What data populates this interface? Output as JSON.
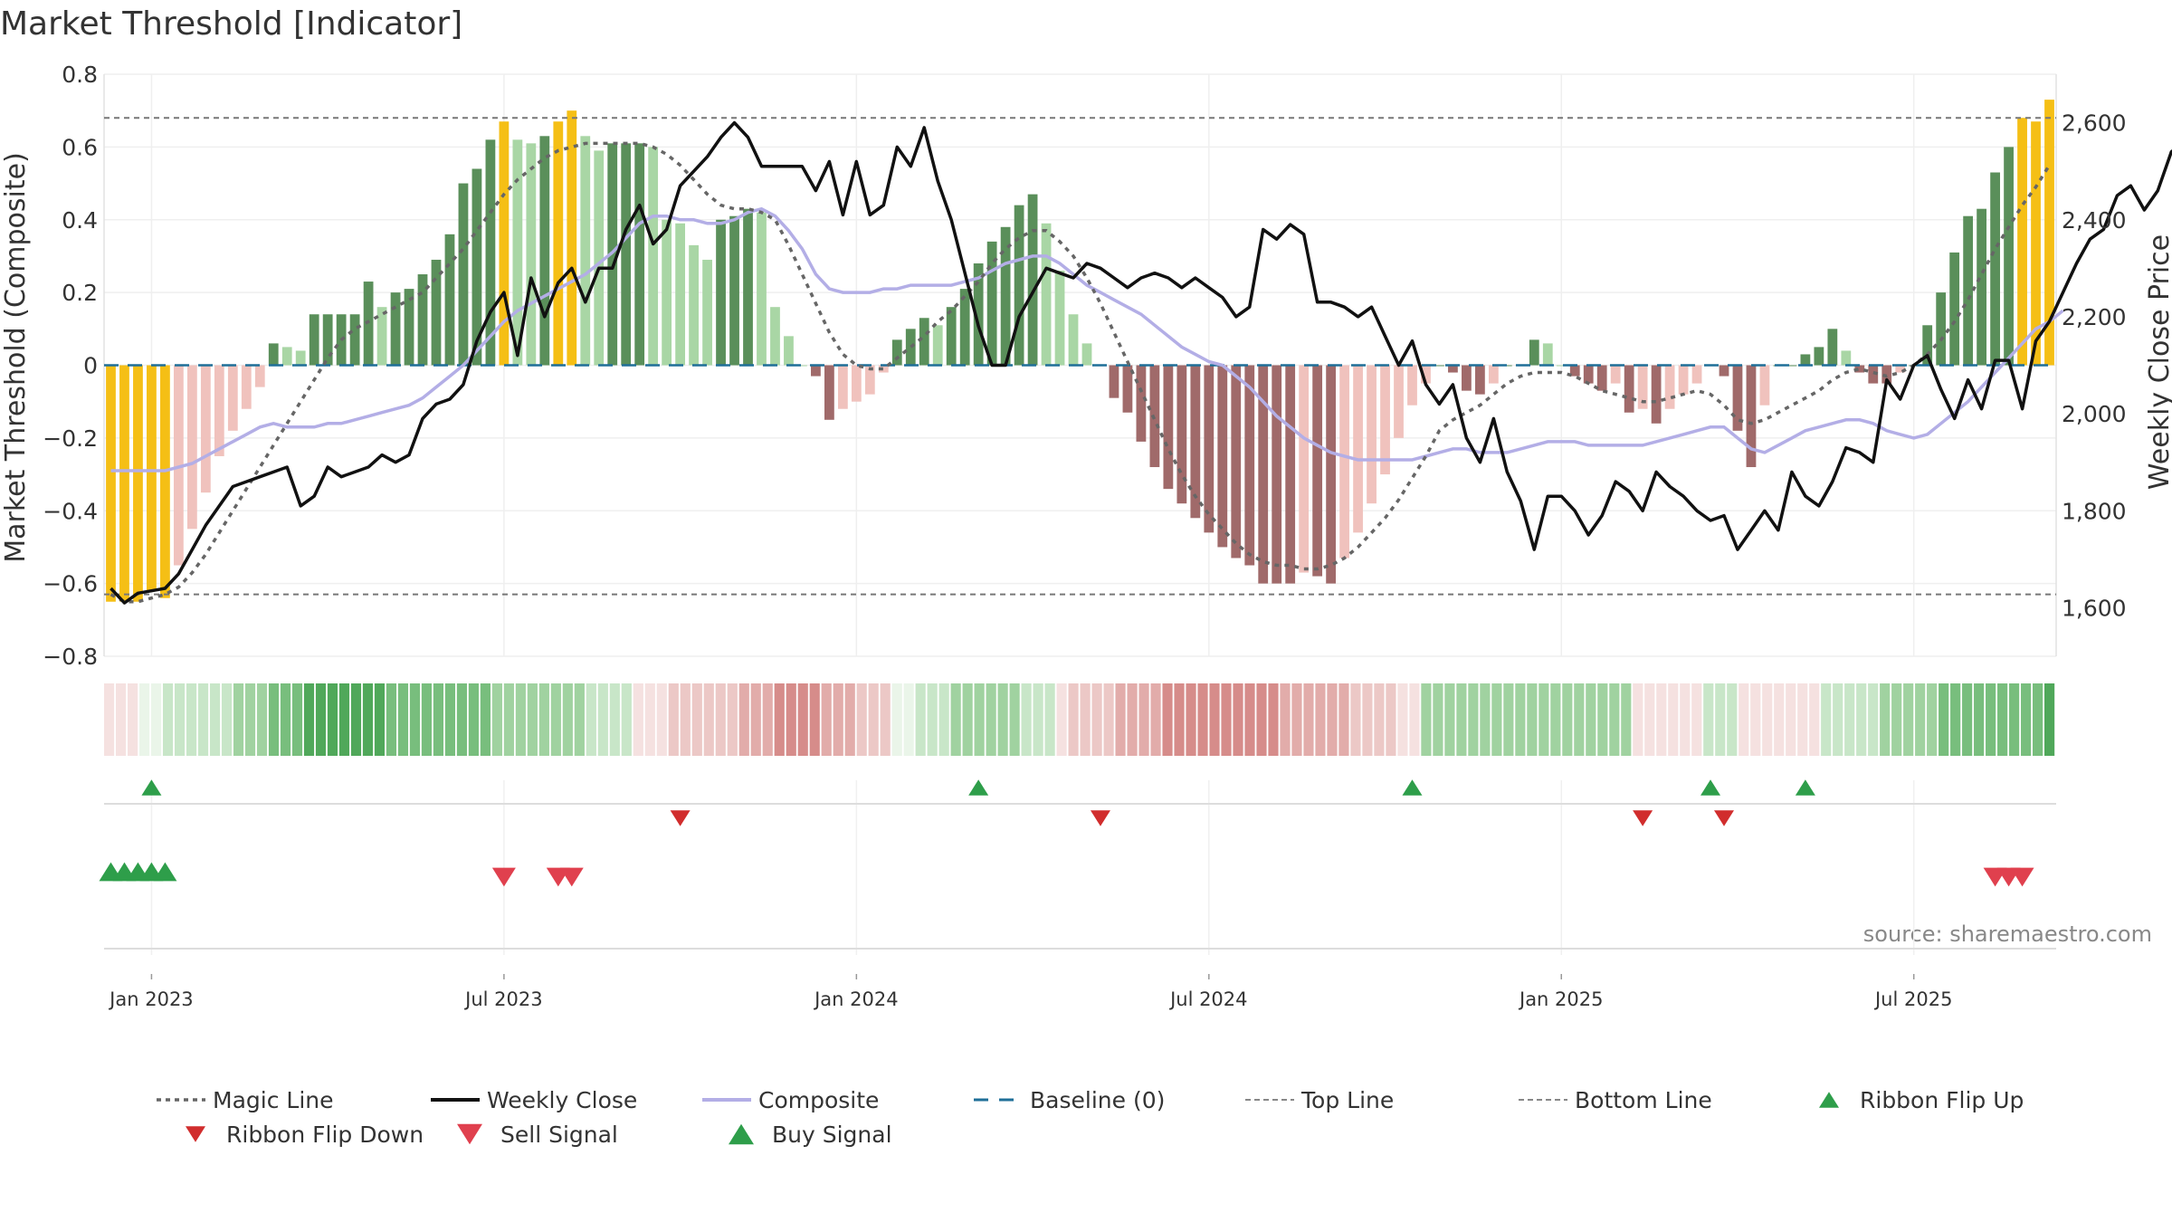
{
  "chart_data": {
    "type": "bar",
    "title": "Market Threshold [Indicator]",
    "ylabel": "Market Threshold (Composite)",
    "y2label": "Weekly Close Price",
    "source": "source: sharemaestro.com",
    "ylim": [
      -0.8,
      0.8
    ],
    "y2lim": [
      1500,
      2700
    ],
    "yticks": [
      {
        "value": 0.8,
        "label": "0.8"
      },
      {
        "value": 0.6,
        "label": "0.6"
      },
      {
        "value": 0.4,
        "label": "0.4"
      },
      {
        "value": 0.2,
        "label": "0.2"
      },
      {
        "value": 0,
        "label": "0"
      },
      {
        "value": -0.2,
        "label": "−0.2"
      },
      {
        "value": -0.4,
        "label": "−0.4"
      },
      {
        "value": -0.6,
        "label": "−0.6"
      },
      {
        "value": -0.8,
        "label": "−0.8"
      }
    ],
    "y2ticks": [
      {
        "value": 2600,
        "label": "2,600"
      },
      {
        "value": 2400,
        "label": "2,400"
      },
      {
        "value": 2200,
        "label": "2,200"
      },
      {
        "value": 2000,
        "label": "2,000"
      },
      {
        "value": 1800,
        "label": "1,800"
      },
      {
        "value": 1600,
        "label": "1,600"
      }
    ],
    "x_date_ticks": [
      {
        "week": 3,
        "label": "Jan 2023"
      },
      {
        "week": 29,
        "label": "Jul 2023"
      },
      {
        "week": 55,
        "label": "Jan 2024"
      },
      {
        "week": 81,
        "label": "Jul 2024"
      },
      {
        "week": 107,
        "label": "Jan 2025"
      },
      {
        "week": 133,
        "label": "Jul 2025"
      }
    ],
    "top_line": 0.68,
    "bottom_line": -0.63,
    "bar_colors": {
      "strong_pos": "#5a8f5a",
      "weak_pos": "#a9d6a5",
      "strong_neg": "#a06a6a",
      "weak_neg": "#f0c2bd",
      "extreme": "#f5bf15"
    },
    "line_colors": {
      "magic": "#666666",
      "weekly_close": "#111111",
      "composite": "#b3aee6",
      "baseline": "#1f6f98",
      "threshold": "#777777"
    },
    "ribbon_colors": {
      "green": [
        [
          234,
          245,
          233
        ],
        [
          200,
          230,
          200
        ],
        [
          160,
          210,
          160
        ],
        [
          120,
          190,
          125
        ],
        [
          80,
          168,
          90
        ]
      ],
      "red": [
        [
          245,
          225,
          224
        ],
        [
          236,
          200,
          198
        ],
        [
          226,
          172,
          170
        ],
        [
          214,
          140,
          138
        ],
        [
          200,
          112,
          110
        ]
      ]
    },
    "composite_bars": [
      -0.65,
      -0.65,
      -0.65,
      -0.62,
      -0.64,
      -0.55,
      -0.45,
      -0.35,
      -0.25,
      -0.18,
      -0.12,
      -0.06,
      0.06,
      0.05,
      0.04,
      0.14,
      0.14,
      0.14,
      0.14,
      0.23,
      0.16,
      0.2,
      0.21,
      0.25,
      0.29,
      0.36,
      0.5,
      0.54,
      0.62,
      0.67,
      0.62,
      0.61,
      0.63,
      0.67,
      0.7,
      0.63,
      0.59,
      0.61,
      0.61,
      0.61,
      0.6,
      0.4,
      0.39,
      0.33,
      0.29,
      0.4,
      0.41,
      0.43,
      0.42,
      0.16,
      0.08,
      0.0,
      -0.03,
      -0.15,
      -0.12,
      -0.1,
      -0.08,
      -0.02,
      0.07,
      0.1,
      0.13,
      0.11,
      0.16,
      0.21,
      0.28,
      0.34,
      0.38,
      0.44,
      0.47,
      0.39,
      0.26,
      0.14,
      0.06,
      0.0,
      -0.09,
      -0.13,
      -0.21,
      -0.28,
      -0.34,
      -0.38,
      -0.42,
      -0.46,
      -0.5,
      -0.53,
      -0.55,
      -0.6,
      -0.6,
      -0.6,
      -0.57,
      -0.58,
      -0.6,
      -0.53,
      -0.46,
      -0.38,
      -0.3,
      -0.2,
      -0.11,
      -0.05,
      0.0,
      -0.02,
      -0.07,
      -0.08,
      -0.05,
      0.0,
      0.0,
      0.07,
      0.06,
      0.0,
      -0.03,
      -0.05,
      -0.07,
      -0.05,
      -0.13,
      -0.12,
      -0.16,
      -0.12,
      -0.08,
      -0.05,
      0.0,
      -0.03,
      -0.18,
      -0.28,
      -0.11,
      0.0,
      0.0,
      0.03,
      0.05,
      0.1,
      0.04,
      -0.02,
      -0.05,
      -0.05,
      -0.02,
      0.0,
      0.11,
      0.2,
      0.31,
      0.41,
      0.43,
      0.53,
      0.6,
      0.68,
      0.67,
      0.73
    ],
    "weekly_close": [
      1640,
      1610,
      1630,
      1635,
      1640,
      1670,
      1720,
      1770,
      1810,
      1850,
      1860,
      1870,
      1880,
      1890,
      1810,
      1830,
      1890,
      1870,
      1880,
      1890,
      1915,
      1900,
      1915,
      1990,
      2020,
      2030,
      2060,
      2150,
      2210,
      2250,
      2120,
      2280,
      2200,
      2270,
      2300,
      2230,
      2300,
      2300,
      2380,
      2430,
      2350,
      2380,
      2470,
      2500,
      2530,
      2570,
      2600,
      2570,
      2510,
      2510,
      2510,
      2510,
      2460,
      2520,
      2410,
      2520,
      2410,
      2430,
      2550,
      2510,
      2590,
      2480,
      2400,
      2290,
      2180,
      2100,
      2100,
      2200,
      2250,
      2300,
      2290,
      2280,
      2310,
      2300,
      2280,
      2260,
      2280,
      2290,
      2280,
      2260,
      2280,
      2260,
      2240,
      2200,
      2220,
      2380,
      2360,
      2390,
      2370,
      2230,
      2230,
      2220,
      2200,
      2220,
      2160,
      2100,
      2150,
      2060,
      2020,
      2060,
      1950,
      1900,
      1990,
      1880,
      1820,
      1720,
      1830,
      1830,
      1800,
      1750,
      1790,
      1860,
      1840,
      1800,
      1880,
      1850,
      1830,
      1800,
      1780,
      1790,
      1720,
      1760,
      1800,
      1760,
      1880,
      1830,
      1810,
      1860,
      1930,
      1920,
      1900,
      2070,
      2030,
      2100,
      2120,
      2050,
      1990,
      2070,
      2010,
      2110,
      2110,
      2010,
      2150,
      2190,
      2250,
      2310,
      2360,
      2380,
      2450,
      2470,
      2420,
      2460,
      2540,
      2560
    ],
    "composite_line": [
      -0.29,
      -0.29,
      -0.29,
      -0.29,
      -0.29,
      -0.28,
      -0.27,
      -0.25,
      -0.23,
      -0.21,
      -0.19,
      -0.17,
      -0.16,
      -0.17,
      -0.17,
      -0.17,
      -0.16,
      -0.16,
      -0.15,
      -0.14,
      -0.13,
      -0.12,
      -0.11,
      -0.09,
      -0.06,
      -0.03,
      0.0,
      0.04,
      0.08,
      0.12,
      0.15,
      0.17,
      0.19,
      0.21,
      0.23,
      0.25,
      0.28,
      0.31,
      0.35,
      0.39,
      0.41,
      0.41,
      0.4,
      0.4,
      0.39,
      0.39,
      0.4,
      0.42,
      0.43,
      0.41,
      0.37,
      0.32,
      0.25,
      0.21,
      0.2,
      0.2,
      0.2,
      0.21,
      0.21,
      0.22,
      0.22,
      0.22,
      0.22,
      0.23,
      0.24,
      0.26,
      0.28,
      0.29,
      0.3,
      0.3,
      0.28,
      0.25,
      0.22,
      0.2,
      0.18,
      0.16,
      0.14,
      0.11,
      0.08,
      0.05,
      0.03,
      0.01,
      0.0,
      -0.03,
      -0.06,
      -0.1,
      -0.14,
      -0.17,
      -0.2,
      -0.22,
      -0.24,
      -0.25,
      -0.26,
      -0.26,
      -0.26,
      -0.26,
      -0.26,
      -0.25,
      -0.24,
      -0.23,
      -0.23,
      -0.24,
      -0.24,
      -0.24,
      -0.23,
      -0.22,
      -0.21,
      -0.21,
      -0.21,
      -0.22,
      -0.22,
      -0.22,
      -0.22,
      -0.22,
      -0.21,
      -0.2,
      -0.19,
      -0.18,
      -0.17,
      -0.17,
      -0.2,
      -0.23,
      -0.24,
      -0.22,
      -0.2,
      -0.18,
      -0.17,
      -0.16,
      -0.15,
      -0.15,
      -0.16,
      -0.18,
      -0.19,
      -0.2,
      -0.19,
      -0.16,
      -0.13,
      -0.1,
      -0.06,
      -0.02,
      0.02,
      0.06,
      0.1,
      0.12,
      0.15
    ],
    "magic_line": [
      -0.63,
      -0.65,
      -0.65,
      -0.64,
      -0.63,
      -0.61,
      -0.57,
      -0.52,
      -0.46,
      -0.4,
      -0.34,
      -0.28,
      -0.22,
      -0.16,
      -0.1,
      -0.04,
      0.02,
      0.07,
      0.1,
      0.12,
      0.14,
      0.16,
      0.18,
      0.2,
      0.24,
      0.28,
      0.32,
      0.37,
      0.42,
      0.47,
      0.51,
      0.54,
      0.57,
      0.59,
      0.6,
      0.61,
      0.61,
      0.61,
      0.61,
      0.61,
      0.6,
      0.58,
      0.55,
      0.51,
      0.47,
      0.44,
      0.43,
      0.43,
      0.42,
      0.4,
      0.33,
      0.25,
      0.17,
      0.09,
      0.03,
      0.0,
      -0.01,
      -0.01,
      0.02,
      0.05,
      0.08,
      0.12,
      0.15,
      0.19,
      0.23,
      0.28,
      0.32,
      0.35,
      0.37,
      0.37,
      0.34,
      0.3,
      0.24,
      0.17,
      0.09,
      0.01,
      -0.07,
      -0.15,
      -0.23,
      -0.3,
      -0.36,
      -0.41,
      -0.45,
      -0.49,
      -0.52,
      -0.54,
      -0.55,
      -0.55,
      -0.56,
      -0.56,
      -0.55,
      -0.53,
      -0.5,
      -0.46,
      -0.42,
      -0.37,
      -0.31,
      -0.25,
      -0.18,
      -0.15,
      -0.13,
      -0.11,
      -0.08,
      -0.05,
      -0.03,
      -0.02,
      -0.02,
      -0.02,
      -0.03,
      -0.05,
      -0.07,
      -0.08,
      -0.09,
      -0.1,
      -0.1,
      -0.09,
      -0.08,
      -0.07,
      -0.08,
      -0.11,
      -0.15,
      -0.16,
      -0.15,
      -0.13,
      -0.11,
      -0.09,
      -0.07,
      -0.04,
      -0.02,
      -0.01,
      -0.02,
      -0.03,
      -0.02,
      0.0,
      0.03,
      0.07,
      0.12,
      0.18,
      0.25,
      0.32,
      0.38,
      0.44,
      0.49,
      0.55
    ],
    "ribbon_levels": [
      -1,
      -1,
      -1,
      1,
      1,
      2,
      2,
      2,
      2,
      2,
      2,
      3,
      3,
      3,
      4,
      4,
      4,
      5,
      5,
      5,
      5,
      5,
      5,
      5,
      4,
      4,
      4,
      4,
      4,
      4,
      4,
      4,
      4,
      3,
      3,
      3,
      3,
      3,
      3,
      3,
      3,
      2,
      2,
      2,
      2,
      -1,
      -1,
      -1,
      -2,
      -2,
      -2,
      -2,
      -2,
      -2,
      -3,
      -3,
      -3,
      -4,
      -4,
      -4,
      -4,
      -3,
      -3,
      -3,
      -2,
      -2,
      -2,
      1,
      1,
      2,
      2,
      2,
      3,
      3,
      3,
      3,
      3,
      3,
      2,
      2,
      2,
      -1,
      -2,
      -2,
      -2,
      -2,
      -3,
      -3,
      -3,
      -3,
      -4,
      -4,
      -4,
      -4,
      -4,
      -4,
      -4,
      -4,
      -4,
      -4,
      -3,
      -3,
      -3,
      -3,
      -3,
      -3,
      -2,
      -2,
      -2,
      -2,
      -1,
      -1,
      3,
      3,
      3,
      3,
      3,
      3,
      3,
      3,
      3,
      3,
      3,
      3,
      3,
      3,
      3,
      3,
      3,
      3,
      -1,
      -1,
      -1,
      -1,
      -1,
      -1,
      2,
      2,
      2,
      -1,
      -1,
      -1,
      -1,
      -1,
      -1,
      -1,
      2,
      2,
      2,
      2,
      2,
      3,
      3,
      3,
      3,
      3,
      4,
      4,
      4,
      4,
      4,
      4,
      4,
      4,
      4,
      5
    ],
    "ribbon_flip_up_weeks": [
      3,
      64,
      96,
      118,
      125
    ],
    "ribbon_flip_down_weeks": [
      42,
      73,
      113,
      119
    ],
    "buy_signal_weeks": [
      0,
      1,
      2,
      3,
      4
    ],
    "sell_signal_weeks": [
      29,
      33,
      34,
      139,
      140,
      141
    ],
    "legend": [
      {
        "label": "Magic Line",
        "kind": "dotted",
        "color": "#666666"
      },
      {
        "label": "Weekly Close",
        "kind": "solid",
        "color": "#111111"
      },
      {
        "label": "Composite",
        "kind": "solid",
        "color": "#b3aee6"
      },
      {
        "label": "Baseline (0)",
        "kind": "dashed",
        "color": "#1f6f98"
      },
      {
        "label": "Top Line",
        "kind": "thin-dashed",
        "color": "#888888"
      },
      {
        "label": "Bottom Line",
        "kind": "thin-dashed",
        "color": "#888888"
      },
      {
        "label": "Ribbon Flip Up",
        "kind": "tri-up",
        "color": "#2e9e4a"
      },
      {
        "label": "Ribbon Flip Down",
        "kind": "tri-down",
        "color": "#d12d2d"
      },
      {
        "label": "Sell Signal",
        "kind": "tri-down-big",
        "color": "#e0404e"
      },
      {
        "label": "Buy Signal",
        "kind": "tri-up-big",
        "color": "#2e9e4a"
      }
    ]
  }
}
